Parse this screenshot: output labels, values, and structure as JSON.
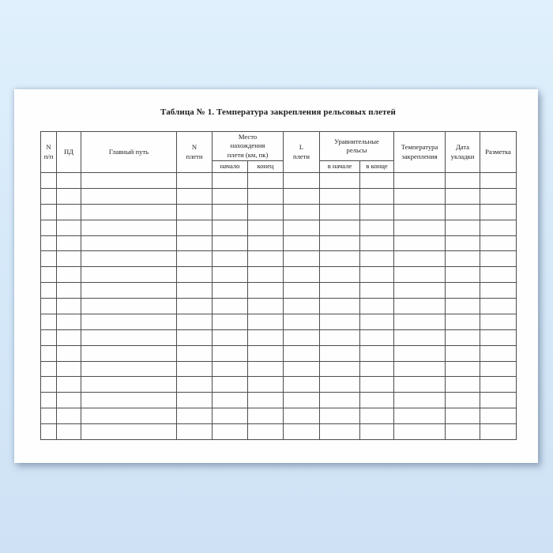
{
  "document": {
    "title": "Таблица № 1. Температура закрепления рельсовых плетей"
  },
  "table": {
    "header": {
      "num": "N\nп/п",
      "pd": "ПД",
      "main_track": "Главный путь",
      "string_num": "N\nплети",
      "location": "Место\nнахождения\nплети (км, пк)",
      "location_start": "начало",
      "location_end": "конец",
      "string_length": "L\nплети",
      "equalizing_rails": "Уравнительные\nрельсы",
      "rails_start": "в начале",
      "rails_end": "в конце",
      "fixing_temperature": "Температура\nзакрепления",
      "laying_date": "Дата\nукладки",
      "marking": "Разметка"
    },
    "body_rows": 17,
    "columns": 12,
    "cells_empty": true
  },
  "colors": {
    "background_top": "#e0f0fc",
    "background_bottom": "#cfe2f5",
    "page": "#fefefe",
    "grid_line": "#4d4d4d",
    "ink": "#1c1c1c"
  }
}
